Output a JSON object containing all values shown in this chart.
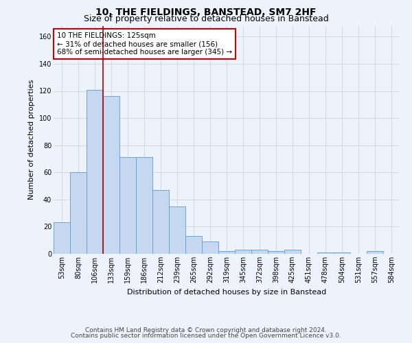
{
  "title": "10, THE FIELDINGS, BANSTEAD, SM7 2HF",
  "subtitle": "Size of property relative to detached houses in Banstead",
  "xlabel": "Distribution of detached houses by size in Banstead",
  "ylabel": "Number of detached properties",
  "bar_labels": [
    "53sqm",
    "80sqm",
    "106sqm",
    "133sqm",
    "159sqm",
    "186sqm",
    "212sqm",
    "239sqm",
    "265sqm",
    "292sqm",
    "319sqm",
    "345sqm",
    "372sqm",
    "398sqm",
    "425sqm",
    "451sqm",
    "478sqm",
    "504sqm",
    "531sqm",
    "557sqm",
    "584sqm"
  ],
  "bar_values": [
    23,
    60,
    121,
    116,
    71,
    71,
    47,
    35,
    13,
    9,
    2,
    3,
    3,
    2,
    3,
    0,
    1,
    1,
    0,
    2,
    0
  ],
  "bar_color": "#c5d8f0",
  "bar_edge_color": "#5b9bd5",
  "ylim": [
    0,
    168
  ],
  "yticks": [
    0,
    20,
    40,
    60,
    80,
    100,
    120,
    140,
    160
  ],
  "vline_x_index": 2.5,
  "vline_color": "#aa0000",
  "annotation_text": "10 THE FIELDINGS: 125sqm\n← 31% of detached houses are smaller (156)\n68% of semi-detached houses are larger (345) →",
  "annotation_box_color": "#ffffff",
  "annotation_box_edge": "#cc0000",
  "footer_line1": "Contains HM Land Registry data © Crown copyright and database right 2024.",
  "footer_line2": "Contains public sector information licensed under the Open Government Licence v3.0.",
  "bg_color": "#eef2fa",
  "grid_color": "#d0d8e8",
  "title_fontsize": 10,
  "subtitle_fontsize": 9,
  "label_fontsize": 8,
  "tick_fontsize": 7,
  "footer_fontsize": 6.5,
  "annotation_fontsize": 7.5
}
